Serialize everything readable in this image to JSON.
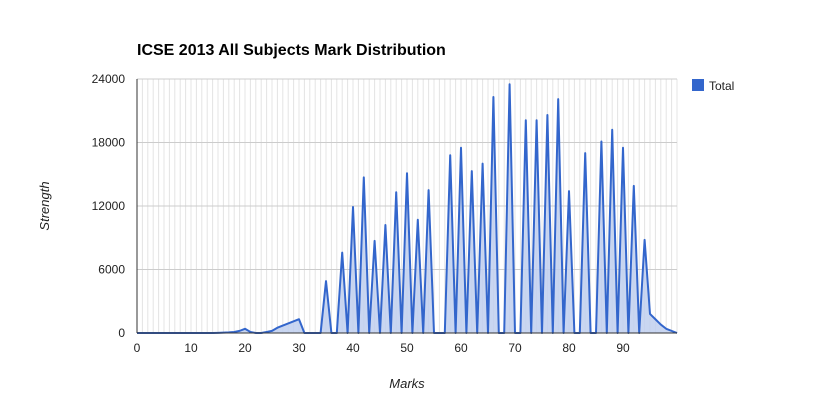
{
  "chart_data": {
    "type": "area",
    "title": "ICSE 2013 All Subjects Mark Distribution",
    "xlabel": "Marks",
    "ylabel": "Strength",
    "xlim": [
      0,
      100
    ],
    "ylim": [
      0,
      24000
    ],
    "x_ticks": [
      0,
      10,
      20,
      30,
      40,
      50,
      60,
      70,
      80,
      90
    ],
    "x_tick_labels": [
      "0",
      "10",
      "20",
      "30",
      "40",
      "50",
      "60",
      "70",
      "80",
      "90"
    ],
    "y_ticks": [
      0,
      6000,
      12000,
      18000,
      24000
    ],
    "y_tick_labels": [
      "0",
      "6000",
      "12000",
      "18000",
      "24000"
    ],
    "grid": true,
    "legend_position": "right",
    "colors": {
      "series": "#3366cc",
      "fill": "#bfcfee",
      "grid": "#e4e4e4",
      "axis": "#333333"
    },
    "series": [
      {
        "name": "Total",
        "x": [
          0,
          1,
          2,
          3,
          4,
          5,
          6,
          7,
          8,
          9,
          10,
          11,
          12,
          13,
          14,
          15,
          16,
          17,
          18,
          19,
          20,
          21,
          22,
          23,
          24,
          25,
          26,
          27,
          28,
          29,
          30,
          31,
          32,
          33,
          34,
          35,
          36,
          37,
          38,
          39,
          40,
          41,
          42,
          43,
          44,
          45,
          46,
          47,
          48,
          49,
          50,
          51,
          52,
          53,
          54,
          55,
          56,
          57,
          58,
          59,
          60,
          61,
          62,
          63,
          64,
          65,
          66,
          67,
          68,
          69,
          70,
          71,
          72,
          73,
          74,
          75,
          76,
          77,
          78,
          79,
          80,
          81,
          82,
          83,
          84,
          85,
          86,
          87,
          88,
          89,
          90,
          91,
          92,
          93,
          94,
          95,
          96,
          97,
          98,
          99,
          100
        ],
        "values": [
          0,
          0,
          0,
          0,
          0,
          0,
          0,
          0,
          0,
          0,
          0,
          0,
          0,
          0,
          0,
          10,
          30,
          60,
          100,
          200,
          400,
          100,
          0,
          0,
          100,
          200,
          500,
          700,
          900,
          1100,
          1300,
          0,
          0,
          0,
          0,
          4900,
          0,
          0,
          7600,
          0,
          11900,
          0,
          14700,
          0,
          8700,
          0,
          10200,
          0,
          13300,
          0,
          15100,
          0,
          10700,
          0,
          13500,
          0,
          0,
          0,
          16800,
          0,
          17500,
          0,
          15300,
          0,
          16000,
          0,
          22300,
          0,
          0,
          23500,
          0,
          0,
          20100,
          0,
          20100,
          0,
          20600,
          0,
          22100,
          0,
          13400,
          0,
          0,
          17000,
          0,
          0,
          18100,
          0,
          19200,
          0,
          17500,
          0,
          13900,
          0,
          8800,
          1800,
          1300,
          800,
          400,
          200,
          0
        ]
      }
    ]
  }
}
